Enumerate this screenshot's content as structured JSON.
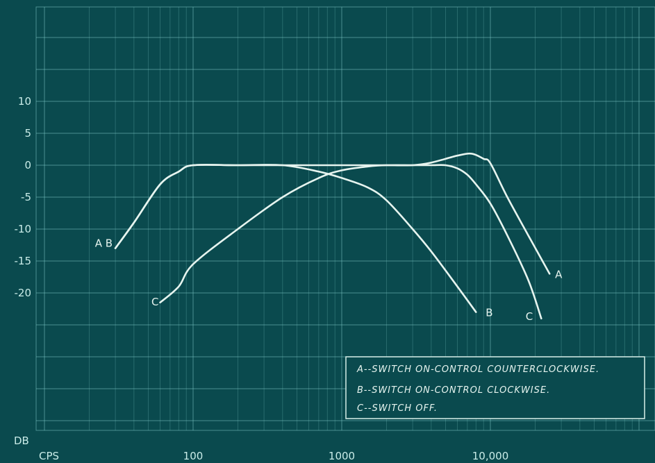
{
  "chart_data": {
    "type": "line",
    "title": "",
    "x_scale": "log",
    "xlim": [
      20,
      40000
    ],
    "ylim": [
      -41,
      26
    ],
    "grid": true,
    "x_axis_unit_label": "CPS",
    "y_axis_unit_label": "DB",
    "x_tick_labels": [
      {
        "value": 100,
        "label": "100"
      },
      {
        "value": 1000,
        "label": "1000"
      },
      {
        "value": 10000,
        "label": "10,000"
      }
    ],
    "y_tick_labels": [
      {
        "value": 10,
        "label": "10"
      },
      {
        "value": 5,
        "label": "5"
      },
      {
        "value": 0,
        "label": "0"
      },
      {
        "value": -5,
        "label": "-5"
      },
      {
        "value": -10,
        "label": "-10"
      },
      {
        "value": -15,
        "label": "-15"
      },
      {
        "value": -20,
        "label": "-20"
      }
    ],
    "series": [
      {
        "name": "A",
        "label": "A",
        "points": [
          [
            30,
            -13
          ],
          [
            40,
            -9
          ],
          [
            60,
            -3
          ],
          [
            80,
            -1
          ],
          [
            100,
            0
          ],
          [
            200,
            0
          ],
          [
            500,
            0
          ],
          [
            1000,
            0
          ],
          [
            2000,
            0
          ],
          [
            3000,
            0
          ],
          [
            4000,
            0.4
          ],
          [
            6000,
            1.5
          ],
          [
            7500,
            1.8
          ],
          [
            9000,
            1
          ],
          [
            10000,
            0.3
          ],
          [
            13000,
            -5
          ],
          [
            18000,
            -11
          ],
          [
            25000,
            -17
          ]
        ]
      },
      {
        "name": "B",
        "label": "A B",
        "points": [
          [
            30,
            -13
          ],
          [
            40,
            -9
          ],
          [
            60,
            -3
          ],
          [
            80,
            -1
          ],
          [
            100,
            0
          ],
          [
            200,
            0
          ],
          [
            400,
            0
          ],
          [
            700,
            -1
          ],
          [
            1000,
            -2
          ],
          [
            1500,
            -3.5
          ],
          [
            2000,
            -5.5
          ],
          [
            3000,
            -10
          ],
          [
            4000,
            -13.5
          ],
          [
            6000,
            -19
          ],
          [
            8000,
            -23
          ]
        ]
      },
      {
        "name": "C",
        "label": "C",
        "points": [
          [
            60,
            -21.5
          ],
          [
            80,
            -19
          ],
          [
            100,
            -15.5
          ],
          [
            200,
            -10
          ],
          [
            400,
            -5
          ],
          [
            700,
            -2
          ],
          [
            1000,
            -0.8
          ],
          [
            1500,
            -0.2
          ],
          [
            2000,
            0
          ],
          [
            3000,
            0
          ],
          [
            4000,
            0
          ],
          [
            5000,
            0
          ],
          [
            6000,
            -0.5
          ],
          [
            7000,
            -1.5
          ],
          [
            8000,
            -3
          ],
          [
            10000,
            -6
          ],
          [
            13000,
            -11
          ],
          [
            18000,
            -18
          ],
          [
            22000,
            -24
          ]
        ]
      }
    ],
    "legend": {
      "placement": "bottom-right",
      "entries": [
        "A--SWITCH ON-CONTROL COUNTERCLOCKWISE.",
        "B--SWITCH ON-CONTROL CLOCKWISE.",
        "C--SWITCH OFF."
      ]
    }
  }
}
